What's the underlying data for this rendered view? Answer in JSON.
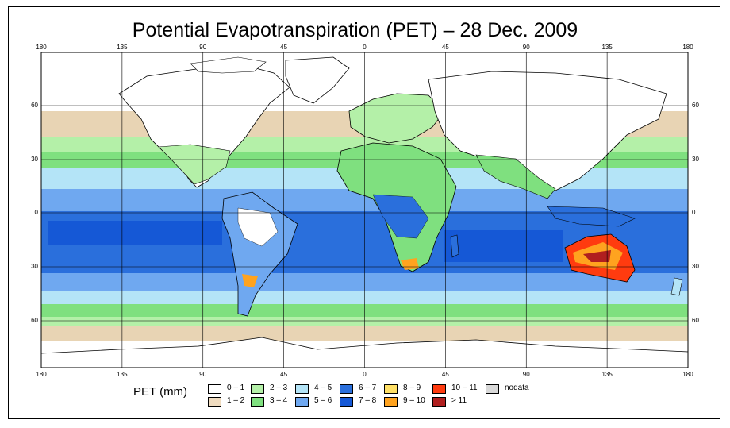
{
  "title": "Potential Evapotranspiration (PET) – 28 Dec. 2009",
  "map": {
    "top_lon_labels": [
      "180",
      "135",
      "90",
      "45",
      "0",
      "45",
      "90",
      "135",
      "180"
    ],
    "bottom_lon_labels": [
      "180",
      "135",
      "90",
      "45",
      "0",
      "45",
      "90",
      "135",
      "180"
    ],
    "lat_labels": [
      "60",
      "30",
      "0",
      "30",
      "60"
    ],
    "colors": {
      "ocean_equatorial": "#2a6fdc",
      "ocean_warm": "#6fa8f0",
      "ocean_mid": "#b4e4f7",
      "subtropical": "#7fe07f",
      "light_green": "#b4f0a8",
      "polar": "#e8d4b4",
      "ice": "#ffffff",
      "australia_hot": "#d81e05",
      "australia_warm": "#ffa31f"
    }
  },
  "legend": {
    "title": "PET (mm)",
    "items": [
      {
        "label": "0 – 1",
        "color": "#ffffff"
      },
      {
        "label": "1 – 2",
        "color": "#f0dcc0"
      },
      {
        "label": "2 – 3",
        "color": "#b4f0a8"
      },
      {
        "label": "3 – 4",
        "color": "#7fe07f"
      },
      {
        "label": "4 – 5",
        "color": "#b4e4f7"
      },
      {
        "label": "5 – 6",
        "color": "#6fa8f0"
      },
      {
        "label": "6 – 7",
        "color": "#2a6fdc"
      },
      {
        "label": "7 – 8",
        "color": "#1558d6"
      },
      {
        "label": "8 – 9",
        "color": "#ffe066"
      },
      {
        "label": "9 – 10",
        "color": "#ffa31f"
      },
      {
        "label": "10 – 11",
        "color": "#ff3b0f"
      },
      {
        "label": "> 11",
        "color": "#b01f1f"
      },
      {
        "label": "nodata",
        "color": "#d9d9d9"
      }
    ]
  }
}
